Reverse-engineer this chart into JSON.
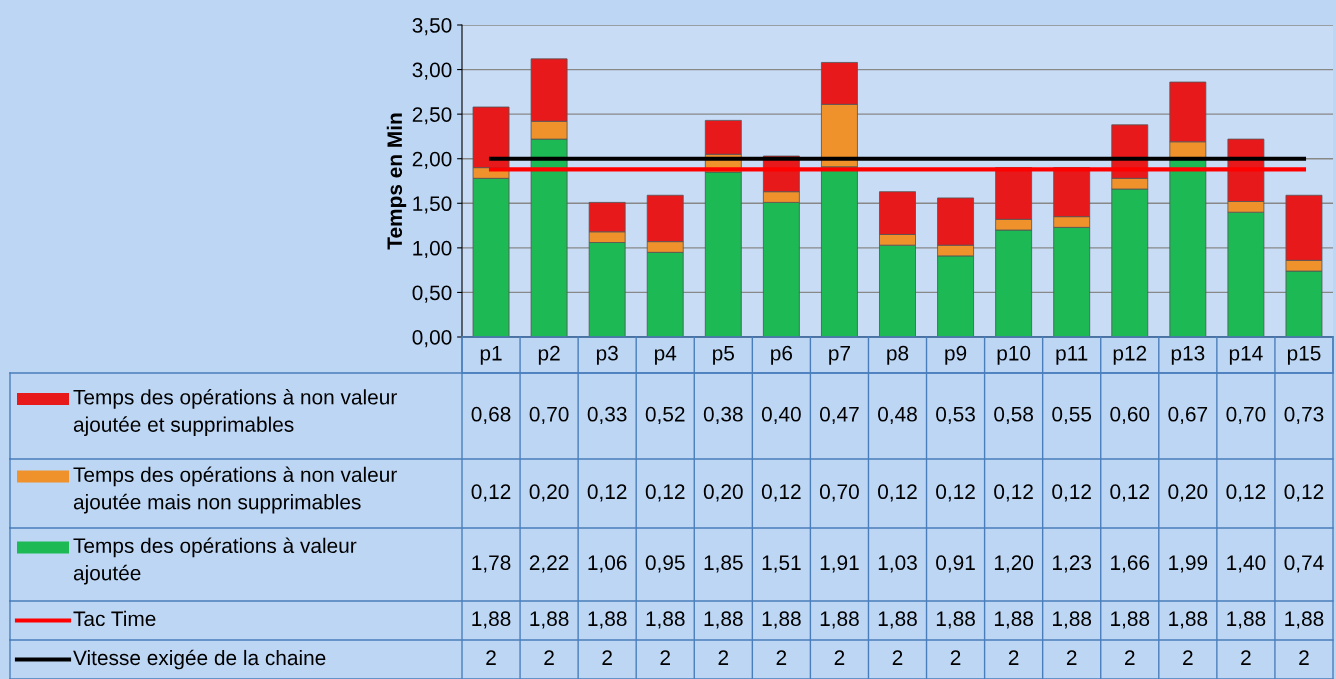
{
  "chart_data": {
    "type": "bar",
    "stacked": true,
    "ylabel": "Temps en Min",
    "categories": [
      "p1",
      "p2",
      "p3",
      "p4",
      "p5",
      "p6",
      "p7",
      "p8",
      "p9",
      "p10",
      "p11",
      "p12",
      "p13",
      "p14",
      "p15"
    ],
    "series": [
      {
        "name": "Temps des opérations à valeur ajoutée",
        "color": "#1db954",
        "values": [
          1.78,
          2.22,
          1.06,
          0.95,
          1.85,
          1.51,
          1.91,
          1.03,
          0.91,
          1.2,
          1.23,
          1.66,
          1.99,
          1.4,
          0.74
        ],
        "value_labels": [
          "1,78",
          "2,22",
          "1,06",
          "0,95",
          "1,85",
          "1,51",
          "1,91",
          "1,03",
          "0,91",
          "1,20",
          "1,23",
          "1,66",
          "1,99",
          "1,40",
          "0,74"
        ]
      },
      {
        "name": "Temps des opérations à non valeur ajoutée mais non supprimables",
        "color": "#f0922b",
        "values": [
          0.12,
          0.2,
          0.12,
          0.12,
          0.2,
          0.12,
          0.7,
          0.12,
          0.12,
          0.12,
          0.12,
          0.12,
          0.2,
          0.12,
          0.12
        ],
        "value_labels": [
          "0,12",
          "0,20",
          "0,12",
          "0,12",
          "0,20",
          "0,12",
          "0,70",
          "0,12",
          "0,12",
          "0,12",
          "0,12",
          "0,12",
          "0,20",
          "0,12",
          "0,12"
        ]
      },
      {
        "name": "Temps des opérations à non valeur ajoutée et supprimables",
        "color": "#e8191a",
        "values": [
          0.68,
          0.7,
          0.33,
          0.52,
          0.38,
          0.4,
          0.47,
          0.48,
          0.53,
          0.58,
          0.55,
          0.6,
          0.67,
          0.7,
          0.73
        ],
        "value_labels": [
          "0,68",
          "0,70",
          "0,33",
          "0,52",
          "0,38",
          "0,40",
          "0,47",
          "0,48",
          "0,53",
          "0,58",
          "0,55",
          "0,60",
          "0,67",
          "0,70",
          "0,73"
        ]
      },
      {
        "name": "Tac Time",
        "type": "line",
        "color": "#ff0000",
        "values": [
          1.88,
          1.88,
          1.88,
          1.88,
          1.88,
          1.88,
          1.88,
          1.88,
          1.88,
          1.88,
          1.88,
          1.88,
          1.88,
          1.88,
          1.88
        ],
        "value_labels": [
          "1,88",
          "1,88",
          "1,88",
          "1,88",
          "1,88",
          "1,88",
          "1,88",
          "1,88",
          "1,88",
          "1,88",
          "1,88",
          "1,88",
          "1,88",
          "1,88",
          "1,88"
        ]
      },
      {
        "name": "Vitesse exigée de la chaine",
        "type": "line",
        "color": "#000000",
        "values": [
          2,
          2,
          2,
          2,
          2,
          2,
          2,
          2,
          2,
          2,
          2,
          2,
          2,
          2,
          2
        ],
        "value_labels": [
          "2",
          "2",
          "2",
          "2",
          "2",
          "2",
          "2",
          "2",
          "2",
          "2",
          "2",
          "2",
          "2",
          "2",
          "2"
        ]
      }
    ],
    "ylim": [
      0,
      3.5
    ],
    "yticks": [
      {
        "value": 0,
        "label": "0,00"
      },
      {
        "value": 0.5,
        "label": "0,50"
      },
      {
        "value": 1,
        "label": "1,00"
      },
      {
        "value": 1.5,
        "label": "1,50"
      },
      {
        "value": 2,
        "label": "2,00"
      },
      {
        "value": 2.5,
        "label": "2,50"
      },
      {
        "value": 3,
        "label": "3,00"
      },
      {
        "value": 3.5,
        "label": "3,50"
      }
    ],
    "grid": "y",
    "legend": "bottom left",
    "marker": "none",
    "line_style": "solid"
  }
}
